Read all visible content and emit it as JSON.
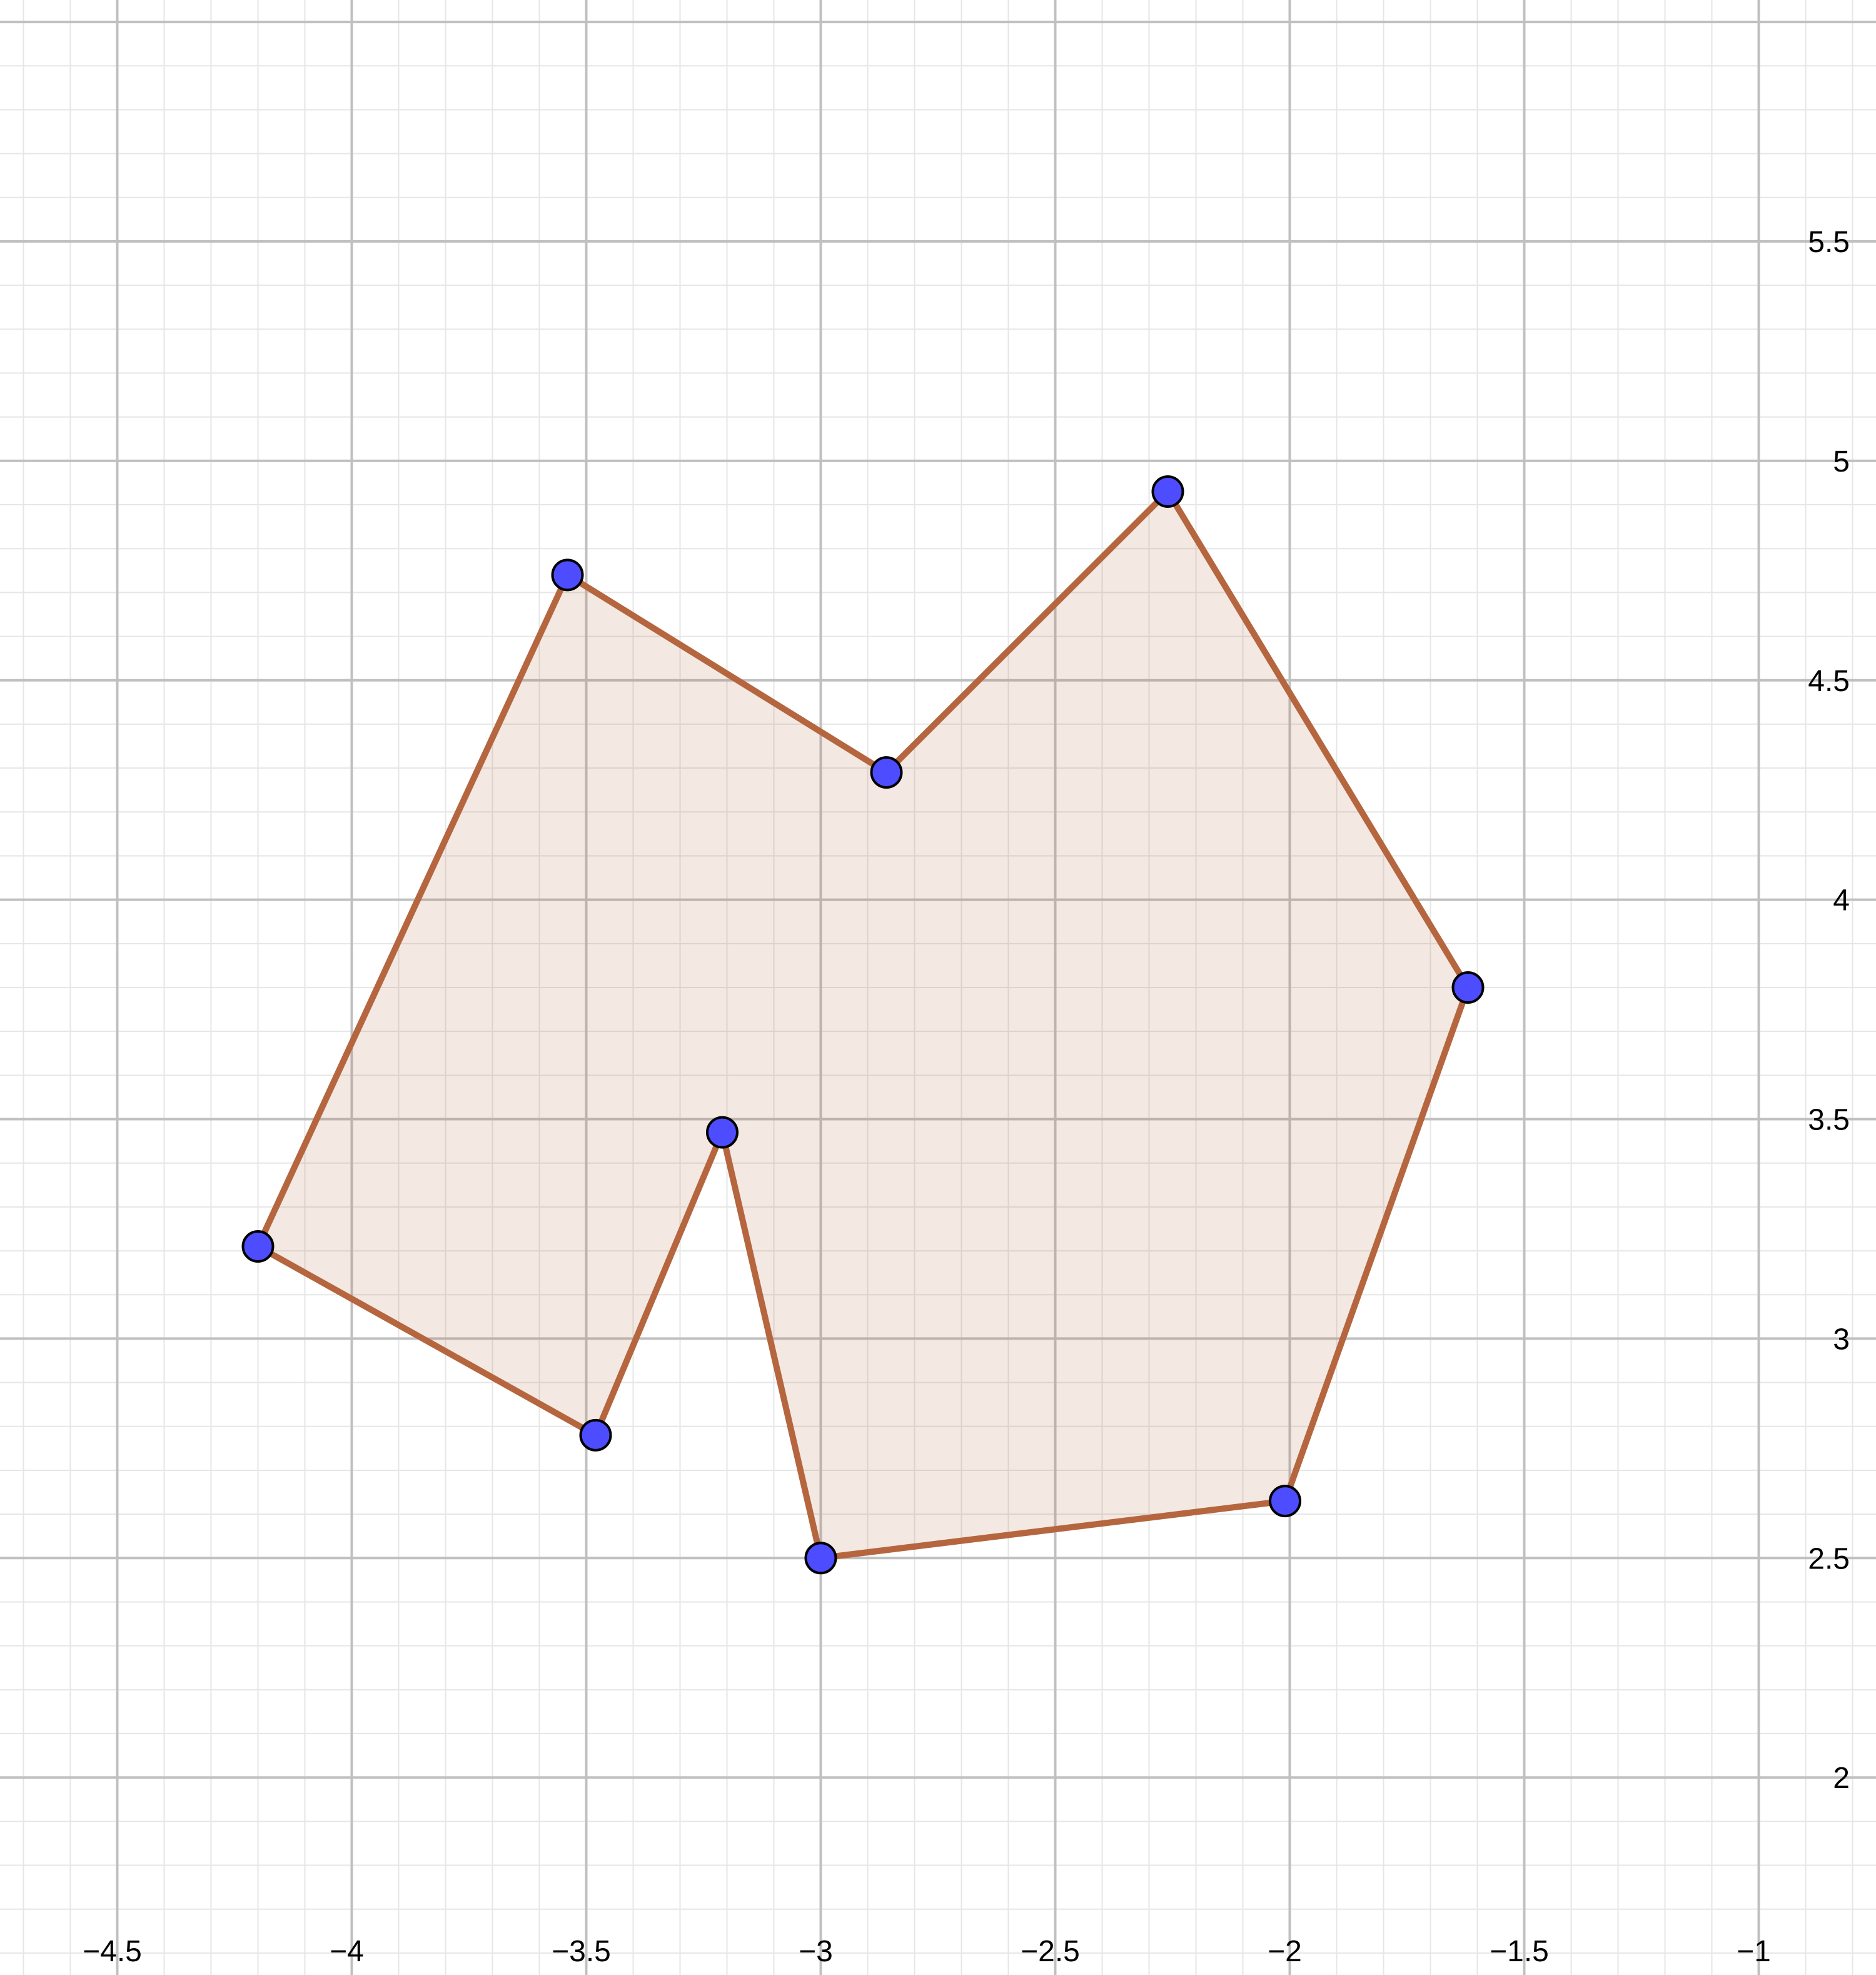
{
  "colors": {
    "background": "#ffffff",
    "minor_grid": "#e6e6e6",
    "major_grid": "#c0c0c0",
    "polygon_stroke": "#b5663f",
    "polygon_fill": "#b5663f",
    "polygon_fill_opacity": 0.15,
    "point_fill": "#4d4dff",
    "point_stroke": "#000000"
  },
  "axes": {
    "x_range": [
      -4.75,
      -0.75
    ],
    "y_range": [
      1.55,
      6.05
    ],
    "grid": true,
    "major_step": 0.5,
    "minor_step": 0.1,
    "x_ticks": [
      {
        "value": -4.5,
        "label": "−4.5"
      },
      {
        "value": -4,
        "label": "−4"
      },
      {
        "value": -3.5,
        "label": "−3.5"
      },
      {
        "value": -3,
        "label": "−3"
      },
      {
        "value": -2.5,
        "label": "−2.5"
      },
      {
        "value": -2,
        "label": "−2"
      },
      {
        "value": -1.5,
        "label": "−1.5"
      },
      {
        "value": -1,
        "label": "−1"
      }
    ],
    "y_ticks": [
      {
        "value": 2,
        "label": "2"
      },
      {
        "value": 2.5,
        "label": "2.5"
      },
      {
        "value": 3,
        "label": "3"
      },
      {
        "value": 3.5,
        "label": "3.5"
      },
      {
        "value": 4,
        "label": "4"
      },
      {
        "value": 4.5,
        "label": "4.5"
      },
      {
        "value": 5,
        "label": "5"
      },
      {
        "value": 5.5,
        "label": "5.5"
      }
    ]
  },
  "polygon": {
    "vertices": [
      {
        "x": -4.2,
        "y": 3.21
      },
      {
        "x": -3.54,
        "y": 4.74
      },
      {
        "x": -2.86,
        "y": 4.29
      },
      {
        "x": -2.26,
        "y": 4.93
      },
      {
        "x": -1.62,
        "y": 3.8
      },
      {
        "x": -2.01,
        "y": 2.63
      },
      {
        "x": -3.0,
        "y": 2.5
      },
      {
        "x": -3.21,
        "y": 3.47
      },
      {
        "x": -3.48,
        "y": 2.78
      }
    ]
  }
}
